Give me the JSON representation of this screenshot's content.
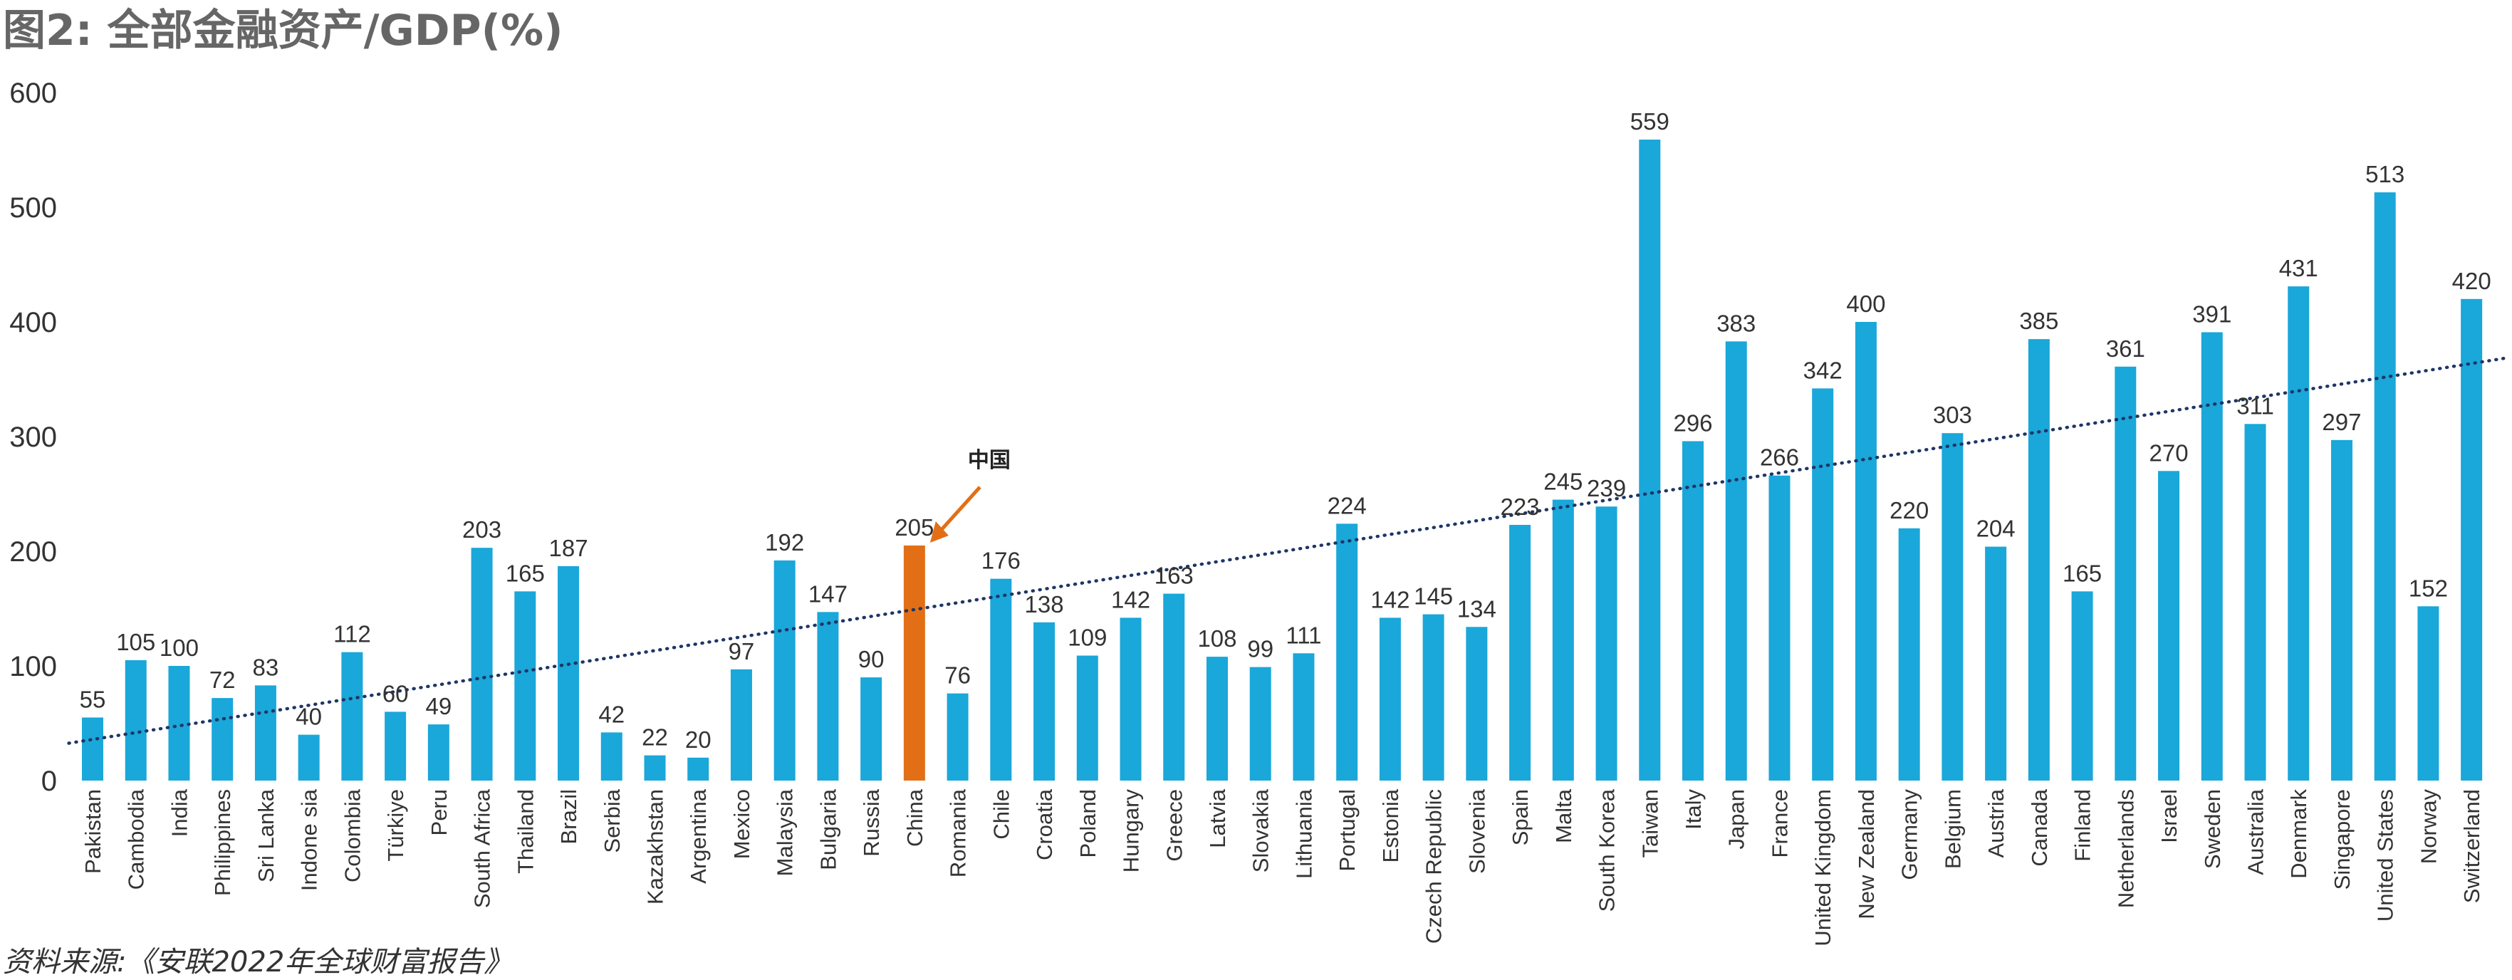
{
  "title": "图2: 全部金融资产/GDP(%)",
  "source": "资料来源:《安联2022年全球财富报告》",
  "chart_data": {
    "type": "bar",
    "title": "图2: 全部金融资产/GDP(%)",
    "xlabel": "",
    "ylabel": "",
    "ylim": [
      0,
      600
    ],
    "yticks": [
      0,
      100,
      200,
      300,
      400,
      500,
      600
    ],
    "grid": false,
    "legend": "none",
    "trendline": "linear, dotted",
    "colors": {
      "bar": "#1aa7d9",
      "highlight": "#e26f16",
      "trend": "#1f3566",
      "text": "#333333"
    },
    "highlight_index": 19,
    "annotation": {
      "text": "中国",
      "target": "China"
    },
    "categories": [
      "Pakistan",
      "Cambodia",
      "India",
      "Philippines",
      "Sri Lanka",
      "Indone sia",
      "Colombia",
      "Türkiye",
      "Peru",
      "South Africa",
      "Thailand",
      "Brazil",
      "Serbia",
      "Kazakhstan",
      "Argentina",
      "Mexico",
      "Malaysia",
      "Bulgaria",
      "Russia",
      "China",
      "Romania",
      "Chile",
      "Croatia",
      "Poland",
      "Hungary",
      "Greece",
      "Latvia",
      "Slovakia",
      "Lithuania",
      "Portugal",
      "Estonia",
      "Czech Republic",
      "Slovenia",
      "Spain",
      "Malta",
      "South Korea",
      "Taiwan",
      "Italy",
      "Japan",
      "France",
      "United Kingdom",
      "New Zealand",
      "Germany",
      "Belgium",
      "Austria",
      "Canada",
      "Finland",
      "Netherlands",
      "Israel",
      "Sweden",
      "Australia",
      "Denmark",
      "Singapore",
      "United States",
      "Norway",
      "Switzerland"
    ],
    "values": [
      55,
      105,
      100,
      72,
      83,
      40,
      112,
      60,
      49,
      203,
      165,
      187,
      42,
      22,
      20,
      97,
      192,
      147,
      90,
      205,
      76,
      176,
      138,
      109,
      142,
      163,
      108,
      99,
      111,
      224,
      142,
      145,
      134,
      223,
      245,
      239,
      559,
      296,
      383,
      266,
      342,
      400,
      220,
      303,
      204,
      385,
      165,
      361,
      270,
      391,
      311,
      431,
      297,
      513,
      152,
      420
    ]
  }
}
